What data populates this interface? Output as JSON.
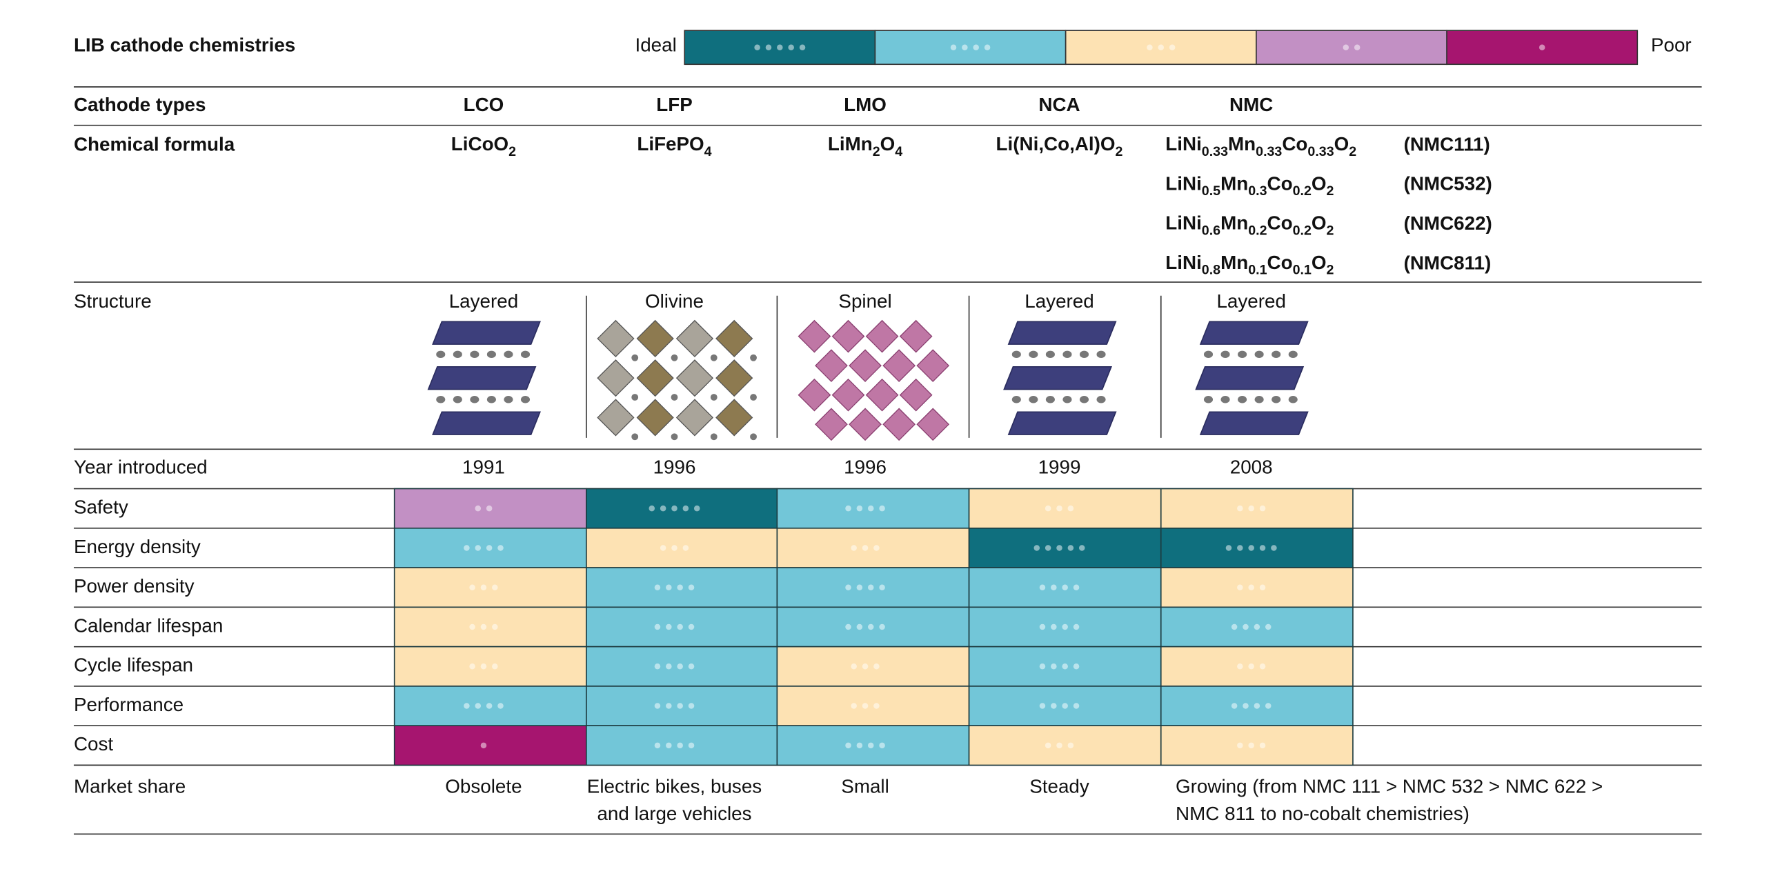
{
  "header": {
    "title": "LIB cathode chemistries",
    "scale_low": "Ideal",
    "scale_high": "Poor"
  },
  "scale": [
    {
      "rating": 5,
      "color": "#0f6f7e"
    },
    {
      "rating": 4,
      "color": "#72c6d8"
    },
    {
      "rating": 3,
      "color": "#fde2b3"
    },
    {
      "rating": 2,
      "color": "#c290c4"
    },
    {
      "rating": 1,
      "color": "#a6156f"
    }
  ],
  "table": {
    "columns": [
      "Cathode types",
      "LCO",
      "LFP",
      "LMO",
      "NCA",
      "NMC"
    ],
    "formula": {
      "label": "Chemical formula",
      "values": [
        [
          "LiCoO",
          "2"
        ],
        [
          "LiFePO",
          "4"
        ],
        [
          "LiMn",
          "2",
          "O",
          "4"
        ],
        [
          "Li(Ni,Co,Al)O",
          "2"
        ]
      ],
      "nmc": [
        {
          "formula": [
            "LiNi",
            "0.33",
            "Mn",
            "0.33",
            "Co",
            "0.33",
            "O",
            "2"
          ],
          "note": "(NMC111)"
        },
        {
          "formula": [
            "LiNi",
            "0.5",
            "Mn",
            "0.3",
            "Co",
            "0.2",
            "O",
            "2"
          ],
          "note": "(NMC532)"
        },
        {
          "formula": [
            "LiNi",
            "0.6",
            "Mn",
            "0.2",
            "Co",
            "0.2",
            "O",
            "2"
          ],
          "note": "(NMC622)"
        },
        {
          "formula": [
            "LiNi",
            "0.8",
            "Mn",
            "0.1",
            "Co",
            "0.1",
            "O",
            "2"
          ],
          "note": "(NMC811)"
        }
      ]
    },
    "structure": {
      "label": "Structure",
      "values": [
        "Layered",
        "Olivine",
        "Spinel",
        "Layered",
        "Layered"
      ]
    },
    "year": {
      "label": "Year introduced",
      "values": [
        1991,
        1996,
        1996,
        1999,
        2008
      ]
    },
    "ratings": [
      {
        "label": "Safety",
        "values": [
          2,
          5,
          4,
          3,
          3
        ]
      },
      {
        "label": "Energy density",
        "values": [
          4,
          3,
          3,
          5,
          5
        ]
      },
      {
        "label": "Power density",
        "values": [
          3,
          4,
          4,
          4,
          3
        ]
      },
      {
        "label": "Calendar lifespan",
        "values": [
          3,
          4,
          4,
          4,
          4
        ]
      },
      {
        "label": "Cycle lifespan",
        "values": [
          3,
          4,
          3,
          4,
          3
        ]
      },
      {
        "label": "Performance",
        "values": [
          4,
          4,
          3,
          4,
          4
        ]
      },
      {
        "label": "Cost",
        "values": [
          1,
          4,
          4,
          3,
          3
        ]
      }
    ],
    "market": {
      "label": "Market share",
      "values": [
        [
          "Obsolete"
        ],
        [
          "Electric bikes, buses",
          "and large vehicles"
        ],
        [
          "Small"
        ],
        [
          "Steady"
        ],
        [
          "Growing (from NMC 111 > NMC 532 > NMC 622 >",
          "NMC 811 to no-cobalt chemistries)"
        ]
      ]
    }
  }
}
